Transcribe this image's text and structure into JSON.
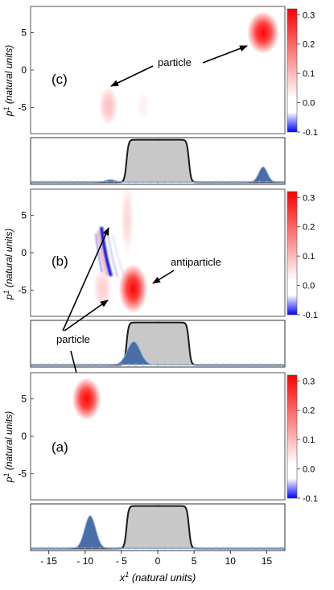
{
  "chart_data": [
    {
      "type": "heatmap",
      "panel": "(c)",
      "ylabel_main": "p",
      "ylabel_sup": "1",
      "ylabel_unit": " (natural units)",
      "ylim": [
        -8.5,
        8.5
      ],
      "yticks": [
        5,
        0,
        -5
      ],
      "xlim": [
        -17.5,
        17.5
      ],
      "colorbar": {
        "range": [
          -0.1,
          0.32
        ],
        "ticks": [
          0.3,
          0.2,
          0.1,
          0.0,
          -0.1
        ],
        "tick_labels": [
          "0.3",
          "0.2",
          "0.1",
          "0.0",
          "-0.1"
        ]
      },
      "blobs": [
        {
          "x": 14.5,
          "p": 5.0,
          "sx": 1.0,
          "sp": 1.3,
          "value": 0.3
        },
        {
          "x": -6.8,
          "p": -4.8,
          "sx": 0.6,
          "sp": 1.2,
          "value": 0.08
        },
        {
          "x": -2.0,
          "p": -4.8,
          "sx": 0.4,
          "sp": 0.9,
          "value": 0.02
        }
      ],
      "annotations": [
        {
          "text": "particle"
        }
      ],
      "density": {
        "barrier": {
          "left": -4.3,
          "right": 4.3,
          "height": 1.0
        },
        "ylim": [
          -0.05,
          1.05
        ],
        "peaks": [
          {
            "x": 14.5,
            "sigma": 0.6,
            "height": 0.36
          },
          {
            "x": -6.5,
            "sigma": 0.7,
            "height": 0.06
          }
        ]
      }
    },
    {
      "type": "heatmap",
      "panel": "(b)",
      "ylabel_main": "p",
      "ylabel_sup": "1",
      "ylabel_unit": " (natural units)",
      "ylim": [
        -8.5,
        8.5
      ],
      "yticks": [
        5,
        0,
        -5
      ],
      "xlim": [
        -17.5,
        17.5
      ],
      "colorbar": {
        "range": [
          -0.1,
          0.32
        ],
        "ticks": [
          0.3,
          0.2,
          0.1,
          0.0,
          -0.1
        ],
        "tick_labels": [
          "0.3",
          "0.2",
          "0.1",
          "0.0",
          "-0.1"
        ]
      },
      "blobs": [
        {
          "x": -3.4,
          "p": -4.8,
          "sx": 0.9,
          "sp": 1.5,
          "value": 0.3
        },
        {
          "x": -7.6,
          "p": -4.8,
          "sx": 0.6,
          "sp": 1.3,
          "value": 0.06
        },
        {
          "x": -4.2,
          "p": 4.5,
          "sx": 0.4,
          "sp": 2.2,
          "value": 0.05
        }
      ],
      "annotations": [
        {
          "text": "antiparticle"
        },
        {
          "text": "particle"
        }
      ],
      "density": {
        "barrier": {
          "left": -4.3,
          "right": 4.3,
          "height": 1.0
        },
        "ylim": [
          -0.05,
          1.05
        ],
        "peaks": [
          {
            "x": -3.3,
            "sigma": 0.9,
            "height": 0.55
          }
        ]
      }
    },
    {
      "type": "heatmap",
      "panel": "(a)",
      "ylabel_main": "p",
      "ylabel_sup": "1",
      "ylabel_unit": " (natural units)",
      "ylim": [
        -8.5,
        8.5
      ],
      "yticks": [
        5,
        0,
        -5
      ],
      "xlim": [
        -17.5,
        17.5
      ],
      "colorbar": {
        "range": [
          -0.1,
          0.32
        ],
        "ticks": [
          0.3,
          0.2,
          0.1,
          0.0,
          -0.1
        ],
        "tick_labels": [
          "0.3",
          "0.2",
          "0.1",
          "0.0",
          "-0.1"
        ]
      },
      "blobs": [
        {
          "x": -9.8,
          "p": 5.0,
          "sx": 0.9,
          "sp": 1.3,
          "value": 0.3
        }
      ],
      "annotations": [],
      "density": {
        "barrier": {
          "left": -4.3,
          "right": 4.3,
          "height": 1.0
        },
        "ylim": [
          -0.05,
          1.05
        ],
        "peaks": [
          {
            "x": -9.3,
            "sigma": 0.75,
            "height": 0.77
          }
        ]
      },
      "xlabel_main": "x",
      "xlabel_sup": "1",
      "xlabel_unit": " (natural units)",
      "xticks": [
        -15,
        -10,
        -5,
        0,
        5,
        10,
        15
      ],
      "xtick_labels": [
        "- 15",
        "- 10",
        "- 5",
        "0",
        "5",
        "10",
        "15"
      ]
    }
  ],
  "colors": {
    "positive": "#ff0000",
    "negative": "#0000ff",
    "density_fill": "#4a6ea8",
    "barrier_fill": "#c8c8c8",
    "barrier_line": "#1a1a1a"
  }
}
